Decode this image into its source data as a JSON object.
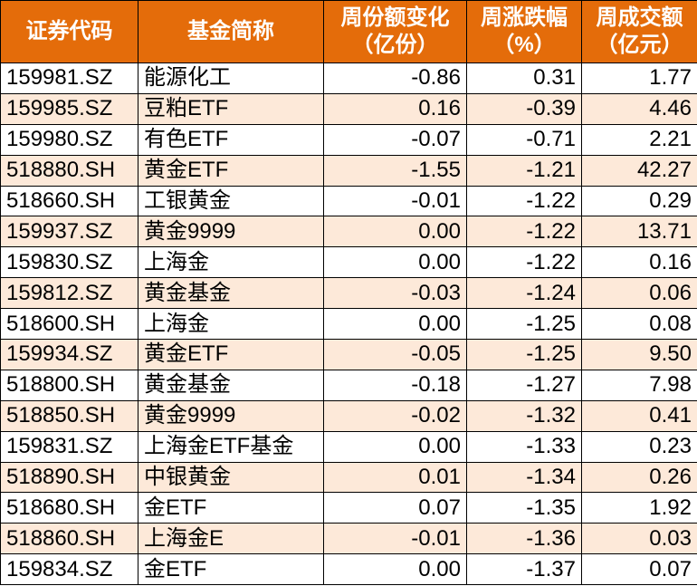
{
  "table": {
    "headers": [
      [
        "证券代码"
      ],
      [
        "基金简称"
      ],
      [
        "周份额变化",
        "（亿份）"
      ],
      [
        "周涨跌幅",
        "（%）"
      ],
      [
        "周成交额",
        "（亿元）"
      ]
    ],
    "rows": [
      [
        "159981.SZ",
        "能源化工",
        "-0.86",
        "0.31",
        "1.77"
      ],
      [
        "159985.SZ",
        "豆粕ETF",
        "0.16",
        "-0.39",
        "4.46"
      ],
      [
        "159980.SZ",
        "有色ETF",
        "-0.07",
        "-0.71",
        "2.21"
      ],
      [
        "518880.SH",
        "黄金ETF",
        "-1.55",
        "-1.21",
        "42.27"
      ],
      [
        "518660.SH",
        "工银黄金",
        "-0.01",
        "-1.22",
        "0.29"
      ],
      [
        "159937.SZ",
        "黄金9999",
        "0.00",
        "-1.22",
        "13.71"
      ],
      [
        "159830.SZ",
        "上海金",
        "0.00",
        "-1.22",
        "0.16"
      ],
      [
        "159812.SZ",
        "黄金基金",
        "-0.03",
        "-1.24",
        "0.06"
      ],
      [
        "518600.SH",
        "上海金",
        "0.00",
        "-1.25",
        "0.08"
      ],
      [
        "159934.SZ",
        "黄金ETF",
        "-0.05",
        "-1.25",
        "9.50"
      ],
      [
        "518800.SH",
        "黄金基金",
        "-0.18",
        "-1.27",
        "7.98"
      ],
      [
        "518850.SH",
        "黄金9999",
        "-0.02",
        "-1.32",
        "0.41"
      ],
      [
        "159831.SZ",
        "上海金ETF基金",
        "0.00",
        "-1.33",
        "0.23"
      ],
      [
        "518890.SH",
        "中银黄金",
        "0.01",
        "-1.34",
        "0.26"
      ],
      [
        "518680.SH",
        "金ETF",
        "0.07",
        "-1.35",
        "1.92"
      ],
      [
        "518860.SH",
        "上海金E",
        "-0.01",
        "-1.36",
        "0.03"
      ],
      [
        "159834.SZ",
        "金ETF",
        "0.00",
        "-1.37",
        "0.07"
      ]
    ]
  }
}
